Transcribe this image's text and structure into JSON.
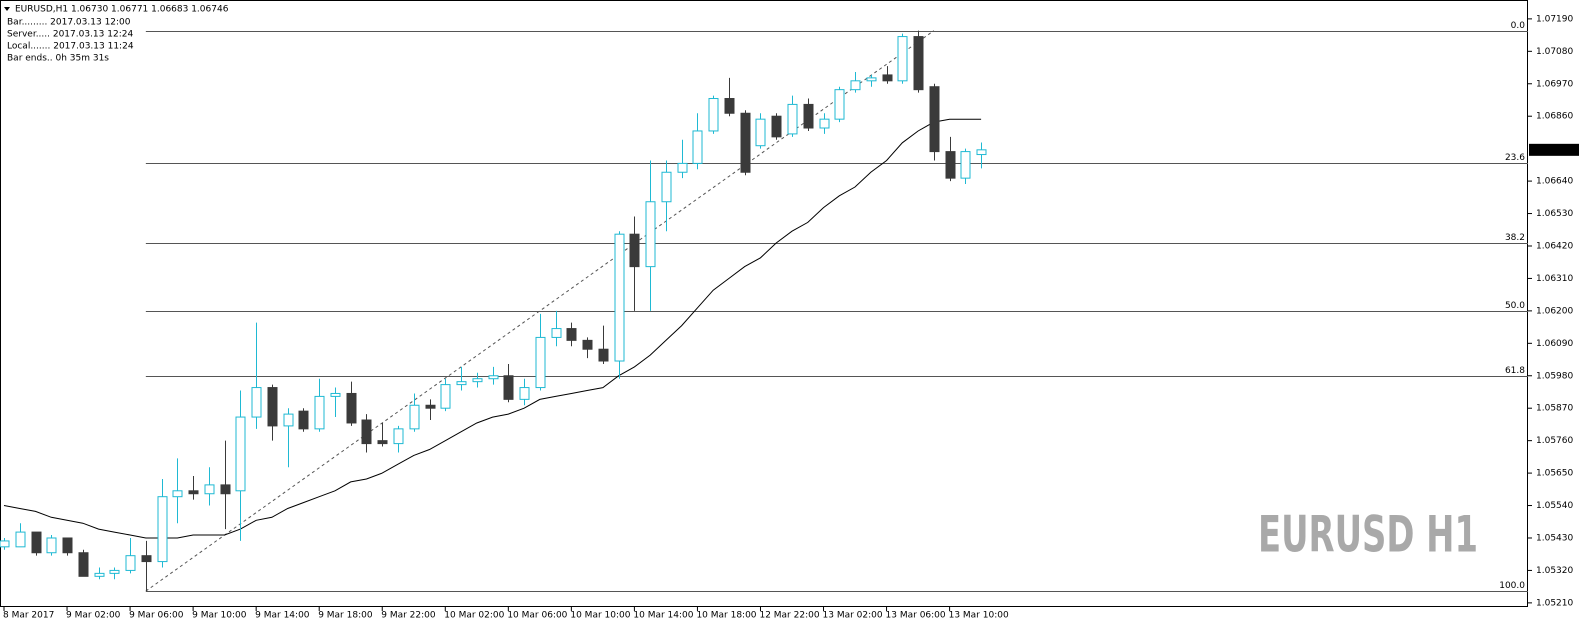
{
  "chart_data": {
    "type": "candlestick",
    "header": "EURUSD,H1  1.06730 1.06771 1.06683 1.06746",
    "info": [
      "Bar......... 2017.03.13 12:00",
      "Server..... 2017.03.13 12:24",
      "Local....... 2017.03.13 11:24",
      "Bar ends.. 0h 35m 31s"
    ],
    "watermark": "EURUSD H1",
    "up_color": "#1fb9d3",
    "down_color": "#3a3a3a",
    "ma_color": "#000000",
    "bid": 1.06746,
    "categories": [
      "8 Mar 2017",
      null,
      null,
      null,
      "9 Mar 02:00",
      null,
      null,
      null,
      "9 Mar 06:00",
      null,
      null,
      null,
      "9 Mar 10:00",
      null,
      null,
      null,
      "9 Mar 14:00",
      null,
      null,
      null,
      "9 Mar 18:00",
      null,
      null,
      null,
      "9 Mar 22:00",
      null,
      null,
      null,
      "10 Mar 02:00",
      null,
      null,
      null,
      "10 Mar 06:00",
      null,
      null,
      null,
      "10 Mar 10:00",
      null,
      null,
      null,
      "10 Mar 14:00",
      null,
      null,
      null,
      "10 Mar 18:00",
      null,
      null,
      null,
      "12 Mar 22:00",
      null,
      null,
      null,
      "13 Mar 02:00",
      null,
      null,
      null,
      "13 Mar 06:00",
      null,
      null,
      null,
      "13 Mar 10:00",
      null,
      null
    ],
    "open": [
      1.054,
      1.054,
      1.0545,
      1.0538,
      1.0543,
      1.0538,
      1.053,
      1.0531,
      1.0532,
      1.0537,
      1.0535,
      1.0557,
      1.0559,
      1.0558,
      1.0561,
      1.0559,
      1.0584,
      1.0594,
      1.0581,
      1.0586,
      1.058,
      1.0591,
      1.0592,
      1.0583,
      1.0576,
      1.0575,
      1.058,
      1.0588,
      1.0587,
      1.0595,
      1.0596,
      1.0597,
      1.0598,
      1.059,
      1.0594,
      1.0611,
      1.0614,
      1.061,
      1.0607,
      1.0603,
      1.0646,
      1.0635,
      1.0657,
      1.0667,
      1.067,
      1.0681,
      1.0692,
      1.0687,
      1.0676,
      1.0686,
      1.068,
      1.069,
      1.0682,
      1.0685,
      1.0695,
      1.0698,
      1.07,
      1.0698,
      1.0713,
      1.0696,
      1.0674,
      1.0665,
      1.0673
    ],
    "high": [
      1.0543,
      1.0548,
      1.0545,
      1.0544,
      1.0543,
      1.0539,
      1.0533,
      1.0533,
      1.0543,
      1.0542,
      1.0563,
      1.057,
      1.0564,
      1.0567,
      1.0576,
      1.0593,
      1.0616,
      1.0595,
      1.0587,
      1.0587,
      1.0597,
      1.0594,
      1.0596,
      1.0585,
      1.0582,
      1.0581,
      1.0592,
      1.059,
      1.0597,
      1.0601,
      1.0599,
      1.0601,
      1.0602,
      1.0597,
      1.0619,
      1.062,
      1.0616,
      1.0611,
      1.0615,
      1.0647,
      1.0652,
      1.0671,
      1.0671,
      1.0678,
      1.0687,
      1.0693,
      1.0699,
      1.0688,
      1.0687,
      1.0687,
      1.0693,
      1.0692,
      1.0687,
      1.0696,
      1.0701,
      1.07,
      1.0703,
      1.0714,
      1.0715,
      1.0697,
      1.0679,
      1.0675,
      1.06771
    ],
    "low": [
      1.0539,
      1.054,
      1.0537,
      1.0537,
      1.0537,
      1.053,
      1.0529,
      1.0529,
      1.0531,
      1.0525,
      1.0533,
      1.0548,
      1.0556,
      1.0554,
      1.0546,
      1.0542,
      1.058,
      1.0576,
      1.0567,
      1.0579,
      1.0579,
      1.0584,
      1.0581,
      1.0572,
      1.0574,
      1.0572,
      1.0579,
      1.0583,
      1.0586,
      1.0593,
      1.0594,
      1.0595,
      1.0589,
      1.0588,
      1.0593,
      1.0608,
      1.0608,
      1.0604,
      1.0602,
      1.0597,
      1.062,
      1.062,
      1.0647,
      1.0665,
      1.0668,
      1.068,
      1.0686,
      1.0666,
      1.0675,
      1.0678,
      1.0679,
      1.0681,
      1.068,
      1.0684,
      1.0694,
      1.0696,
      1.0697,
      1.0697,
      1.0694,
      1.0671,
      1.0664,
      1.0663,
      1.06683
    ],
    "close": [
      1.0542,
      1.0545,
      1.0538,
      1.0543,
      1.0538,
      1.053,
      1.0531,
      1.0532,
      1.0537,
      1.0535,
      1.0557,
      1.0559,
      1.0558,
      1.0561,
      1.0558,
      1.0584,
      1.0594,
      1.0581,
      1.0585,
      1.058,
      1.0591,
      1.0592,
      1.0582,
      1.0575,
      1.0575,
      1.058,
      1.0588,
      1.0587,
      1.0595,
      1.0596,
      1.0597,
      1.0598,
      1.059,
      1.0594,
      1.0611,
      1.0614,
      1.061,
      1.0607,
      1.0603,
      1.0646,
      1.0635,
      1.0657,
      1.0667,
      1.067,
      1.0681,
      1.0692,
      1.0687,
      1.0667,
      1.0685,
      1.0679,
      1.069,
      1.0682,
      1.0685,
      1.0695,
      1.0698,
      1.0699,
      1.0698,
      1.0713,
      1.0695,
      1.0674,
      1.0665,
      1.0674,
      1.06746
    ],
    "ma": [
      1.0554,
      1.0553,
      1.0552,
      1.055,
      1.0549,
      1.0548,
      1.0546,
      1.0545,
      1.0544,
      1.0543,
      1.0543,
      1.0543,
      1.0544,
      1.0544,
      1.0544,
      1.0546,
      1.0549,
      1.055,
      1.0553,
      1.0555,
      1.0557,
      1.0559,
      1.0562,
      1.0563,
      1.0565,
      1.0568,
      1.0571,
      1.0573,
      1.0576,
      1.0579,
      1.0582,
      1.0584,
      1.0585,
      1.0587,
      1.059,
      1.0591,
      1.0592,
      1.0593,
      1.0594,
      1.0598,
      1.0601,
      1.0605,
      1.061,
      1.0615,
      1.0621,
      1.0627,
      1.0631,
      1.0635,
      1.0638,
      1.0643,
      1.0647,
      1.065,
      1.0655,
      1.0659,
      1.0662,
      1.0667,
      1.0671,
      1.0677,
      1.0681,
      1.0684,
      1.0685,
      1.0685,
      1.0685
    ],
    "fib_levels": [
      {
        "label": "0.0",
        "price": 1.0715
      },
      {
        "label": "23.6",
        "price": 1.067
      },
      {
        "label": "38.2",
        "price": 1.0643
      },
      {
        "label": "50.0",
        "price": 1.062
      },
      {
        "label": "61.8",
        "price": 1.0598
      },
      {
        "label": "100.0",
        "price": 1.0525
      }
    ],
    "ylim": [
      1.05196,
      1.07254
    ],
    "yticks": [
      {
        "value": 1.0719,
        "label": "1.07190"
      },
      {
        "value": 1.0708,
        "label": "1.07080"
      },
      {
        "value": 1.0697,
        "label": "1.06970"
      },
      {
        "value": 1.0686,
        "label": "1.06860"
      },
      {
        "value": 1.0664,
        "label": "1.06640"
      },
      {
        "value": 1.0653,
        "label": "1.06530"
      },
      {
        "value": 1.0642,
        "label": "1.06420"
      },
      {
        "value": 1.0631,
        "label": "1.06310"
      },
      {
        "value": 1.062,
        "label": "1.06200"
      },
      {
        "value": 1.0609,
        "label": "1.06090"
      },
      {
        "value": 1.0598,
        "label": "1.05980"
      },
      {
        "value": 1.0587,
        "label": "1.05870"
      },
      {
        "value": 1.0576,
        "label": "1.05760"
      },
      {
        "value": 1.0565,
        "label": "1.05650"
      },
      {
        "value": 1.0554,
        "label": "1.05540"
      },
      {
        "value": 1.0543,
        "label": "1.05430"
      },
      {
        "value": 1.0532,
        "label": "1.05320"
      },
      {
        "value": 1.0521,
        "label": "1.05210"
      }
    ]
  }
}
